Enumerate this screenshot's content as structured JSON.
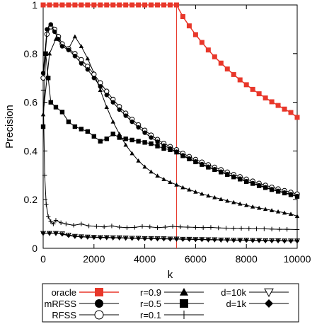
{
  "chart_data": {
    "type": "line",
    "title": "",
    "xlabel": "k",
    "ylabel": "Precision",
    "xlim": [
      0,
      10000
    ],
    "ylim": [
      0,
      1
    ],
    "xticks": [
      0,
      2000,
      4000,
      6000,
      8000,
      10000
    ],
    "yticks": [
      0,
      0.2,
      0.4,
      0.6,
      0.8,
      1
    ],
    "xtick_labels": [
      "0",
      "2000",
      "4000",
      "6000",
      "8000",
      "10000"
    ],
    "ytick_labels": [
      "0",
      "0.2",
      "0.4",
      "0.6",
      "0.8",
      "1"
    ],
    "grid": false,
    "legend_position": "bottom (below plot)",
    "vertical_line_x": 5250,
    "series": [
      {
        "name": "oracle",
        "color": "#e8372a",
        "marker": "square",
        "x": [
          0,
          250,
          500,
          750,
          1000,
          1250,
          1500,
          1750,
          2000,
          2250,
          2500,
          2750,
          3000,
          3250,
          3500,
          3750,
          4000,
          4250,
          4500,
          4750,
          5000,
          5250,
          5500,
          5750,
          6000,
          6250,
          6500,
          6750,
          7000,
          7250,
          7500,
          7750,
          8000,
          8250,
          8500,
          8750,
          9000,
          9250,
          9500,
          9750,
          10000
        ],
        "y": [
          1,
          1,
          1,
          1,
          1,
          1,
          1,
          1,
          1,
          1,
          1,
          1,
          1,
          1,
          1,
          1,
          1,
          1,
          1,
          1,
          1,
          1,
          0.952,
          0.914,
          0.878,
          0.846,
          0.815,
          0.787,
          0.761,
          0.737,
          0.714,
          0.692,
          0.672,
          0.653,
          0.635,
          0.618,
          0.602,
          0.587,
          0.572,
          0.558,
          0.538
        ]
      },
      {
        "name": "mRFSS",
        "color": "#000000",
        "marker": "circle-filled",
        "x": [
          0,
          150,
          300,
          450,
          600,
          750,
          1000,
          1250,
          1500,
          1750,
          2000,
          2250,
          2500,
          2750,
          3000,
          3250,
          3500,
          3750,
          4000,
          4250,
          4500,
          4750,
          5000,
          5250,
          5500,
          5750,
          6000,
          6250,
          6500,
          6750,
          7000,
          7250,
          7500,
          7750,
          8000,
          8250,
          8500,
          8750,
          9000,
          9250,
          9500,
          9750,
          10000
        ],
        "y": [
          0.72,
          0.9,
          0.92,
          0.89,
          0.86,
          0.83,
          0.815,
          0.79,
          0.76,
          0.735,
          0.7,
          0.665,
          0.63,
          0.6,
          0.57,
          0.545,
          0.52,
          0.497,
          0.475,
          0.455,
          0.438,
          0.422,
          0.41,
          0.397,
          0.382,
          0.369,
          0.357,
          0.346,
          0.335,
          0.325,
          0.315,
          0.305,
          0.295,
          0.286,
          0.276,
          0.268,
          0.259,
          0.251,
          0.243,
          0.236,
          0.229,
          0.222,
          0.215
        ]
      },
      {
        "name": "RFSS",
        "color": "#000000",
        "marker": "circle-open",
        "x": [
          0,
          150,
          300,
          450,
          600,
          750,
          1000,
          1250,
          1500,
          1750,
          2000,
          2250,
          2500,
          2750,
          3000,
          3250,
          3500,
          3750,
          4000,
          4250,
          4500,
          4750,
          5000,
          5250,
          5500,
          5750,
          6000,
          6250,
          6500,
          6750,
          7000,
          7250,
          7500,
          7750,
          8000,
          8250,
          8500,
          8750,
          9000,
          9250,
          9500,
          9750,
          10000
        ],
        "y": [
          0.7,
          0.88,
          0.91,
          0.9,
          0.87,
          0.84,
          0.82,
          0.8,
          0.775,
          0.748,
          0.715,
          0.68,
          0.645,
          0.612,
          0.582,
          0.555,
          0.53,
          0.507,
          0.485,
          0.465,
          0.447,
          0.431,
          0.418,
          0.405,
          0.39,
          0.377,
          0.365,
          0.354,
          0.343,
          0.333,
          0.323,
          0.313,
          0.303,
          0.294,
          0.284,
          0.276,
          0.267,
          0.259,
          0.251,
          0.244,
          0.237,
          0.23,
          0.223
        ]
      },
      {
        "name": "r=0.9",
        "color": "#000000",
        "marker": "triangle-up",
        "x": [
          0,
          250,
          500,
          750,
          1000,
          1250,
          1500,
          1750,
          2000,
          2250,
          2500,
          2750,
          3000,
          3250,
          3500,
          3750,
          4000,
          4250,
          4500,
          4750,
          5000,
          5250,
          5500,
          5750,
          6000,
          6250,
          6500,
          6750,
          7000,
          7250,
          7500,
          7750,
          8000,
          8250,
          8500,
          8750,
          9000,
          9250,
          9500,
          9750,
          10000
        ],
        "y": [
          0.55,
          0.8,
          0.86,
          0.84,
          0.82,
          0.87,
          0.83,
          0.78,
          0.72,
          0.65,
          0.58,
          0.52,
          0.47,
          0.425,
          0.39,
          0.36,
          0.335,
          0.315,
          0.298,
          0.284,
          0.272,
          0.261,
          0.25,
          0.241,
          0.232,
          0.224,
          0.216,
          0.209,
          0.202,
          0.195,
          0.189,
          0.183,
          0.177,
          0.171,
          0.166,
          0.161,
          0.156,
          0.151,
          0.146,
          0.141,
          0.132
        ]
      },
      {
        "name": "r=0.5",
        "color": "#000000",
        "marker": "square-filled",
        "x": [
          0,
          100,
          200,
          300,
          500,
          750,
          1000,
          1250,
          1500,
          1750,
          2000,
          2250,
          2500,
          2750,
          3000,
          3250,
          3500,
          3750,
          4000,
          4250,
          4500,
          4750,
          5000,
          5250,
          5500,
          5750,
          6000,
          6250,
          6500,
          6750,
          7000,
          7250,
          7500,
          7750,
          8000,
          8250,
          8500,
          8750,
          9000,
          9250,
          9500,
          9750,
          10000
        ],
        "y": [
          0.5,
          0.8,
          0.7,
          0.6,
          0.58,
          0.56,
          0.52,
          0.5,
          0.49,
          0.48,
          0.46,
          0.44,
          0.45,
          0.47,
          0.455,
          0.45,
          0.445,
          0.44,
          0.435,
          0.43,
          0.42,
          0.41,
          0.405,
          0.395,
          0.38,
          0.367,
          0.355,
          0.344,
          0.333,
          0.323,
          0.313,
          0.303,
          0.293,
          0.284,
          0.274,
          0.266,
          0.257,
          0.249,
          0.241,
          0.234,
          0.227,
          0.22,
          0.213
        ]
      },
      {
        "name": "r=0.1",
        "color": "#000000",
        "marker": "plus",
        "x": [
          0,
          60,
          120,
          200,
          300,
          400,
          500,
          700,
          900,
          1200,
          1500,
          1800,
          2100,
          2400,
          2700,
          3000,
          3300,
          3600,
          3900,
          4200,
          4500,
          4800,
          5100,
          5400,
          5700,
          6000,
          6300,
          6600,
          6900,
          7200,
          7500,
          7800,
          8100,
          8400,
          8700,
          9000,
          9300,
          9600,
          10000
        ],
        "y": [
          0.65,
          0.3,
          0.18,
          0.13,
          0.11,
          0.1,
          0.115,
          0.105,
          0.1,
          0.095,
          0.1,
          0.092,
          0.09,
          0.088,
          0.092,
          0.087,
          0.085,
          0.086,
          0.09,
          0.088,
          0.085,
          0.087,
          0.09,
          0.088,
          0.087,
          0.086,
          0.085,
          0.086,
          0.084,
          0.083,
          0.082,
          0.082,
          0.081,
          0.08,
          0.08,
          0.079,
          0.078,
          0.078,
          0.077
        ]
      },
      {
        "name": "d=10k",
        "color": "#000000",
        "marker": "triangle-down-open",
        "x": [
          0,
          250,
          500,
          750,
          1000,
          1250,
          1500,
          1750,
          2000,
          2250,
          2500,
          2750,
          3000,
          3250,
          3500,
          3750,
          4000,
          4250,
          4500,
          4750,
          5000,
          5250,
          5500,
          5750,
          6000,
          6250,
          6500,
          6750,
          7000,
          7250,
          7500,
          7750,
          8000,
          8250,
          8500,
          8750,
          9000,
          9250,
          9500,
          9750,
          10000
        ],
        "y": [
          0.062,
          0.062,
          0.062,
          0.06,
          0.055,
          0.05,
          0.048,
          0.047,
          0.046,
          0.045,
          0.045,
          0.044,
          0.044,
          0.043,
          0.042,
          0.042,
          0.041,
          0.041,
          0.04,
          0.04,
          0.039,
          0.039,
          0.038,
          0.038,
          0.037,
          0.037,
          0.036,
          0.036,
          0.035,
          0.035,
          0.034,
          0.034,
          0.034,
          0.033,
          0.033,
          0.032,
          0.032,
          0.032,
          0.031,
          0.031,
          0.031
        ]
      },
      {
        "name": "d=1k",
        "color": "#000000",
        "marker": "diamond-filled",
        "x": [
          0,
          250,
          500,
          750,
          1000,
          1250,
          1500,
          1750,
          2000,
          2250,
          2500,
          2750,
          3000,
          3250,
          3500,
          3750,
          4000,
          4250,
          4500,
          4750,
          5000,
          5250,
          5500,
          5750,
          6000,
          6250,
          6500,
          6750,
          7000,
          7250,
          7500,
          7750,
          8000,
          8250,
          8500,
          8750,
          9000,
          9250,
          9500,
          9750,
          10000
        ],
        "y": [
          0.062,
          0.062,
          0.062,
          0.058,
          0.052,
          0.049,
          0.047,
          0.046,
          0.045,
          0.044,
          0.044,
          0.043,
          0.043,
          0.042,
          0.041,
          0.041,
          0.04,
          0.04,
          0.039,
          0.039,
          0.038,
          0.038,
          0.037,
          0.037,
          0.036,
          0.036,
          0.035,
          0.035,
          0.034,
          0.034,
          0.033,
          0.033,
          0.033,
          0.032,
          0.032,
          0.031,
          0.031,
          0.031,
          0.03,
          0.03,
          0.03
        ]
      }
    ],
    "legend": [
      {
        "label": "oracle",
        "series": "oracle"
      },
      {
        "label": "mRFSS",
        "series": "mRFSS"
      },
      {
        "label": "RFSS",
        "series": "RFSS"
      },
      {
        "label": "r=0.9",
        "series": "r=0.9"
      },
      {
        "label": "r=0.5",
        "series": "r=0.5"
      },
      {
        "label": "r=0.1",
        "series": "r=0.1"
      },
      {
        "label": "d=10k",
        "series": "d=10k"
      },
      {
        "label": "d=1k",
        "series": "d=1k"
      }
    ]
  }
}
